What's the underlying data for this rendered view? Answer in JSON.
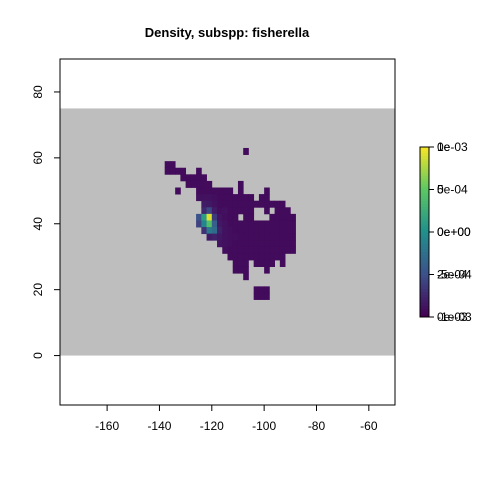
{
  "chart_data": {
    "type": "heatmap",
    "title": "Density, subspp: fisherella",
    "xlabel": "",
    "ylabel": "",
    "xlim": [
      -178,
      -50
    ],
    "ylim": [
      -15,
      90
    ],
    "x_ticks": [
      -160,
      -140,
      -120,
      -100,
      -80,
      -60
    ],
    "y_ticks": [
      0,
      20,
      40,
      60,
      80
    ],
    "x_tick_labels": [
      "-160",
      "-140",
      "-120",
      "-100",
      "-80",
      "-60"
    ],
    "y_tick_labels": [
      "0",
      "20",
      "40",
      "60",
      "80"
    ],
    "background_region": {
      "lat_range": [
        0,
        75
      ],
      "color": "#bebebe"
    },
    "cell_size_deg": 2,
    "colorscale": "viridis",
    "legend": {
      "position": "right",
      "overlapping_tick_labels": [
        {
          "value_frac": 1.0,
          "labels": [
            "1e-03",
            "0e"
          ]
        },
        {
          "value_frac": 0.75,
          "labels": [
            "5e-04",
            "0"
          ]
        },
        {
          "value_frac": 0.5,
          "labels": [
            "0e+00",
            "0e+00"
          ]
        },
        {
          "value_frac": 0.25,
          "labels": [
            "-5e-04",
            "2e-04"
          ]
        },
        {
          "value_frac": 0.0,
          "labels": [
            "-1e-03",
            "0e-03"
          ]
        }
      ]
    },
    "cells": [
      {
        "lon": -137,
        "lat": 58,
        "v": 0.03
      },
      {
        "lon": -135,
        "lat": 58,
        "v": 0.03
      },
      {
        "lon": -137,
        "lat": 56,
        "v": 0.03
      },
      {
        "lon": -135,
        "lat": 56,
        "v": 0.03
      },
      {
        "lon": -133,
        "lat": 56,
        "v": 0.03
      },
      {
        "lon": -131,
        "lat": 56,
        "v": 0.03
      },
      {
        "lon": -125,
        "lat": 56,
        "v": 0.03
      },
      {
        "lon": -107,
        "lat": 62,
        "v": 0.03
      },
      {
        "lon": -131,
        "lat": 54,
        "v": 0.03
      },
      {
        "lon": -129,
        "lat": 54,
        "v": 0.03
      },
      {
        "lon": -127,
        "lat": 54,
        "v": 0.03
      },
      {
        "lon": -125,
        "lat": 54,
        "v": 0.03
      },
      {
        "lon": -123,
        "lat": 54,
        "v": 0.03
      },
      {
        "lon": -129,
        "lat": 52,
        "v": 0.03
      },
      {
        "lon": -127,
        "lat": 52,
        "v": 0.03
      },
      {
        "lon": -125,
        "lat": 52,
        "v": 0.03
      },
      {
        "lon": -123,
        "lat": 52,
        "v": 0.03
      },
      {
        "lon": -121,
        "lat": 52,
        "v": 0.03
      },
      {
        "lon": -109,
        "lat": 52,
        "v": 0.03
      },
      {
        "lon": -133,
        "lat": 50,
        "v": 0.03
      },
      {
        "lon": -125,
        "lat": 50,
        "v": 0.03
      },
      {
        "lon": -123,
        "lat": 50,
        "v": 0.03
      },
      {
        "lon": -121,
        "lat": 50,
        "v": 0.03
      },
      {
        "lon": -119,
        "lat": 50,
        "v": 0.03
      },
      {
        "lon": -117,
        "lat": 50,
        "v": 0.03
      },
      {
        "lon": -115,
        "lat": 50,
        "v": 0.03
      },
      {
        "lon": -113,
        "lat": 50,
        "v": 0.03
      },
      {
        "lon": -109,
        "lat": 50,
        "v": 0.03
      },
      {
        "lon": -99,
        "lat": 50,
        "v": 0.03
      },
      {
        "lon": -125,
        "lat": 48,
        "v": 0.05
      },
      {
        "lon": -123,
        "lat": 48,
        "v": 0.05
      },
      {
        "lon": -121,
        "lat": 48,
        "v": 0.05
      },
      {
        "lon": -119,
        "lat": 48,
        "v": 0.04
      },
      {
        "lon": -117,
        "lat": 48,
        "v": 0.03
      },
      {
        "lon": -115,
        "lat": 48,
        "v": 0.03
      },
      {
        "lon": -113,
        "lat": 48,
        "v": 0.03
      },
      {
        "lon": -111,
        "lat": 48,
        "v": 0.03
      },
      {
        "lon": -109,
        "lat": 48,
        "v": 0.03
      },
      {
        "lon": -107,
        "lat": 48,
        "v": 0.03
      },
      {
        "lon": -105,
        "lat": 48,
        "v": 0.03
      },
      {
        "lon": -101,
        "lat": 48,
        "v": 0.03
      },
      {
        "lon": -99,
        "lat": 48,
        "v": 0.03
      },
      {
        "lon": -123,
        "lat": 46,
        "v": 0.08
      },
      {
        "lon": -121,
        "lat": 46,
        "v": 0.07
      },
      {
        "lon": -119,
        "lat": 46,
        "v": 0.05
      },
      {
        "lon": -117,
        "lat": 46,
        "v": 0.03
      },
      {
        "lon": -115,
        "lat": 46,
        "v": 0.03
      },
      {
        "lon": -113,
        "lat": 46,
        "v": 0.03
      },
      {
        "lon": -111,
        "lat": 46,
        "v": 0.03
      },
      {
        "lon": -109,
        "lat": 46,
        "v": 0.03
      },
      {
        "lon": -107,
        "lat": 46,
        "v": 0.03
      },
      {
        "lon": -105,
        "lat": 46,
        "v": 0.03
      },
      {
        "lon": -103,
        "lat": 46,
        "v": 0.03
      },
      {
        "lon": -101,
        "lat": 46,
        "v": 0.03
      },
      {
        "lon": -99,
        "lat": 46,
        "v": 0.03
      },
      {
        "lon": -97,
        "lat": 46,
        "v": 0.03
      },
      {
        "lon": -95,
        "lat": 46,
        "v": 0.03
      },
      {
        "lon": -93,
        "lat": 46,
        "v": 0.03
      },
      {
        "lon": -123,
        "lat": 44,
        "v": 0.12
      },
      {
        "lon": -121,
        "lat": 44,
        "v": 0.22
      },
      {
        "lon": -119,
        "lat": 44,
        "v": 0.08
      },
      {
        "lon": -117,
        "lat": 44,
        "v": 0.04
      },
      {
        "lon": -115,
        "lat": 44,
        "v": 0.05
      },
      {
        "lon": -113,
        "lat": 44,
        "v": 0.03
      },
      {
        "lon": -111,
        "lat": 44,
        "v": 0.03
      },
      {
        "lon": -109,
        "lat": 44,
        "v": 0.03
      },
      {
        "lon": -107,
        "lat": 44,
        "v": 0.03
      },
      {
        "lon": -105,
        "lat": 44,
        "v": 0.03
      },
      {
        "lon": -99,
        "lat": 44,
        "v": 0.03
      },
      {
        "lon": -95,
        "lat": 44,
        "v": 0.03
      },
      {
        "lon": -93,
        "lat": 44,
        "v": 0.03
      },
      {
        "lon": -91,
        "lat": 44,
        "v": 0.03
      },
      {
        "lon": -125,
        "lat": 42,
        "v": 0.25
      },
      {
        "lon": -123,
        "lat": 42,
        "v": 0.55
      },
      {
        "lon": -121,
        "lat": 42,
        "v": 0.95
      },
      {
        "lon": -119,
        "lat": 42,
        "v": 0.18
      },
      {
        "lon": -117,
        "lat": 42,
        "v": 0.06
      },
      {
        "lon": -115,
        "lat": 42,
        "v": 0.04
      },
      {
        "lon": -113,
        "lat": 42,
        "v": 0.03
      },
      {
        "lon": -111,
        "lat": 42,
        "v": 0.03
      },
      {
        "lon": -107,
        "lat": 42,
        "v": 0.03
      },
      {
        "lon": -105,
        "lat": 42,
        "v": 0.03
      },
      {
        "lon": -97,
        "lat": 42,
        "v": 0.03
      },
      {
        "lon": -95,
        "lat": 42,
        "v": 0.03
      },
      {
        "lon": -93,
        "lat": 42,
        "v": 0.03
      },
      {
        "lon": -91,
        "lat": 42,
        "v": 0.03
      },
      {
        "lon": -89,
        "lat": 42,
        "v": 0.03
      },
      {
        "lon": -125,
        "lat": 40,
        "v": 0.2
      },
      {
        "lon": -123,
        "lat": 40,
        "v": 0.45
      },
      {
        "lon": -121,
        "lat": 40,
        "v": 0.7
      },
      {
        "lon": -119,
        "lat": 40,
        "v": 0.3
      },
      {
        "lon": -117,
        "lat": 40,
        "v": 0.07
      },
      {
        "lon": -115,
        "lat": 40,
        "v": 0.05
      },
      {
        "lon": -113,
        "lat": 40,
        "v": 0.03
      },
      {
        "lon": -111,
        "lat": 40,
        "v": 0.03
      },
      {
        "lon": -109,
        "lat": 40,
        "v": 0.03
      },
      {
        "lon": -107,
        "lat": 40,
        "v": 0.03
      },
      {
        "lon": -105,
        "lat": 40,
        "v": 0.03
      },
      {
        "lon": -103,
        "lat": 40,
        "v": 0.03
      },
      {
        "lon": -101,
        "lat": 40,
        "v": 0.03
      },
      {
        "lon": -99,
        "lat": 40,
        "v": 0.03
      },
      {
        "lon": -97,
        "lat": 40,
        "v": 0.03
      },
      {
        "lon": -95,
        "lat": 40,
        "v": 0.03
      },
      {
        "lon": -93,
        "lat": 40,
        "v": 0.03
      },
      {
        "lon": -91,
        "lat": 40,
        "v": 0.03
      },
      {
        "lon": -89,
        "lat": 40,
        "v": 0.03
      },
      {
        "lon": -123,
        "lat": 38,
        "v": 0.15
      },
      {
        "lon": -121,
        "lat": 38,
        "v": 0.4
      },
      {
        "lon": -119,
        "lat": 38,
        "v": 0.35
      },
      {
        "lon": -117,
        "lat": 38,
        "v": 0.1
      },
      {
        "lon": -115,
        "lat": 38,
        "v": 0.05
      },
      {
        "lon": -113,
        "lat": 38,
        "v": 0.04
      },
      {
        "lon": -111,
        "lat": 38,
        "v": 0.03
      },
      {
        "lon": -109,
        "lat": 38,
        "v": 0.03
      },
      {
        "lon": -107,
        "lat": 38,
        "v": 0.03
      },
      {
        "lon": -105,
        "lat": 38,
        "v": 0.03
      },
      {
        "lon": -103,
        "lat": 38,
        "v": 0.03
      },
      {
        "lon": -101,
        "lat": 38,
        "v": 0.03
      },
      {
        "lon": -99,
        "lat": 38,
        "v": 0.03
      },
      {
        "lon": -97,
        "lat": 38,
        "v": 0.03
      },
      {
        "lon": -95,
        "lat": 38,
        "v": 0.03
      },
      {
        "lon": -93,
        "lat": 38,
        "v": 0.03
      },
      {
        "lon": -91,
        "lat": 38,
        "v": 0.03
      },
      {
        "lon": -89,
        "lat": 38,
        "v": 0.03
      },
      {
        "lon": -121,
        "lat": 36,
        "v": 0.08
      },
      {
        "lon": -119,
        "lat": 36,
        "v": 0.1
      },
      {
        "lon": -117,
        "lat": 36,
        "v": 0.07
      },
      {
        "lon": -115,
        "lat": 36,
        "v": 0.05
      },
      {
        "lon": -113,
        "lat": 36,
        "v": 0.04
      },
      {
        "lon": -111,
        "lat": 36,
        "v": 0.04
      },
      {
        "lon": -109,
        "lat": 36,
        "v": 0.03
      },
      {
        "lon": -107,
        "lat": 36,
        "v": 0.03
      },
      {
        "lon": -105,
        "lat": 36,
        "v": 0.03
      },
      {
        "lon": -103,
        "lat": 36,
        "v": 0.03
      },
      {
        "lon": -101,
        "lat": 36,
        "v": 0.03
      },
      {
        "lon": -99,
        "lat": 36,
        "v": 0.03
      },
      {
        "lon": -97,
        "lat": 36,
        "v": 0.03
      },
      {
        "lon": -95,
        "lat": 36,
        "v": 0.03
      },
      {
        "lon": -93,
        "lat": 36,
        "v": 0.03
      },
      {
        "lon": -91,
        "lat": 36,
        "v": 0.03
      },
      {
        "lon": -89,
        "lat": 36,
        "v": 0.03
      },
      {
        "lon": -117,
        "lat": 34,
        "v": 0.06
      },
      {
        "lon": -115,
        "lat": 34,
        "v": 0.05
      },
      {
        "lon": -113,
        "lat": 34,
        "v": 0.04
      },
      {
        "lon": -111,
        "lat": 34,
        "v": 0.03
      },
      {
        "lon": -109,
        "lat": 34,
        "v": 0.03
      },
      {
        "lon": -107,
        "lat": 34,
        "v": 0.03
      },
      {
        "lon": -105,
        "lat": 34,
        "v": 0.03
      },
      {
        "lon": -103,
        "lat": 34,
        "v": 0.03
      },
      {
        "lon": -101,
        "lat": 34,
        "v": 0.03
      },
      {
        "lon": -99,
        "lat": 34,
        "v": 0.03
      },
      {
        "lon": -97,
        "lat": 34,
        "v": 0.03
      },
      {
        "lon": -95,
        "lat": 34,
        "v": 0.03
      },
      {
        "lon": -93,
        "lat": 34,
        "v": 0.03
      },
      {
        "lon": -91,
        "lat": 34,
        "v": 0.03
      },
      {
        "lon": -89,
        "lat": 34,
        "v": 0.03
      },
      {
        "lon": -115,
        "lat": 32,
        "v": 0.04
      },
      {
        "lon": -113,
        "lat": 32,
        "v": 0.03
      },
      {
        "lon": -111,
        "lat": 32,
        "v": 0.03
      },
      {
        "lon": -109,
        "lat": 32,
        "v": 0.03
      },
      {
        "lon": -107,
        "lat": 32,
        "v": 0.03
      },
      {
        "lon": -105,
        "lat": 32,
        "v": 0.03
      },
      {
        "lon": -103,
        "lat": 32,
        "v": 0.03
      },
      {
        "lon": -101,
        "lat": 32,
        "v": 0.03
      },
      {
        "lon": -99,
        "lat": 32,
        "v": 0.03
      },
      {
        "lon": -97,
        "lat": 32,
        "v": 0.03
      },
      {
        "lon": -95,
        "lat": 32,
        "v": 0.03
      },
      {
        "lon": -93,
        "lat": 32,
        "v": 0.03
      },
      {
        "lon": -91,
        "lat": 32,
        "v": 0.03
      },
      {
        "lon": -89,
        "lat": 32,
        "v": 0.03
      },
      {
        "lon": -113,
        "lat": 30,
        "v": 0.03
      },
      {
        "lon": -111,
        "lat": 30,
        "v": 0.03
      },
      {
        "lon": -109,
        "lat": 30,
        "v": 0.03
      },
      {
        "lon": -107,
        "lat": 30,
        "v": 0.03
      },
      {
        "lon": -105,
        "lat": 30,
        "v": 0.03
      },
      {
        "lon": -103,
        "lat": 30,
        "v": 0.03
      },
      {
        "lon": -101,
        "lat": 30,
        "v": 0.03
      },
      {
        "lon": -99,
        "lat": 30,
        "v": 0.03
      },
      {
        "lon": -97,
        "lat": 30,
        "v": 0.03
      },
      {
        "lon": -95,
        "lat": 30,
        "v": 0.03
      },
      {
        "lon": -93,
        "lat": 30,
        "v": 0.03
      },
      {
        "lon": -111,
        "lat": 28,
        "v": 0.03
      },
      {
        "lon": -109,
        "lat": 28,
        "v": 0.03
      },
      {
        "lon": -107,
        "lat": 28,
        "v": 0.03
      },
      {
        "lon": -103,
        "lat": 28,
        "v": 0.03
      },
      {
        "lon": -101,
        "lat": 28,
        "v": 0.03
      },
      {
        "lon": -99,
        "lat": 28,
        "v": 0.03
      },
      {
        "lon": -97,
        "lat": 28,
        "v": 0.03
      },
      {
        "lon": -93,
        "lat": 28,
        "v": 0.03
      },
      {
        "lon": -111,
        "lat": 26,
        "v": 0.03
      },
      {
        "lon": -109,
        "lat": 26,
        "v": 0.03
      },
      {
        "lon": -107,
        "lat": 26,
        "v": 0.03
      },
      {
        "lon": -99,
        "lat": 26,
        "v": 0.03
      },
      {
        "lon": -107,
        "lat": 24,
        "v": 0.03
      },
      {
        "lon": -103,
        "lat": 20,
        "v": 0.03
      },
      {
        "lon": -101,
        "lat": 20,
        "v": 0.03
      },
      {
        "lon": -99,
        "lat": 20,
        "v": 0.03
      },
      {
        "lon": -103,
        "lat": 18,
        "v": 0.03
      },
      {
        "lon": -101,
        "lat": 18,
        "v": 0.03
      },
      {
        "lon": -99,
        "lat": 18,
        "v": 0.03
      }
    ]
  }
}
